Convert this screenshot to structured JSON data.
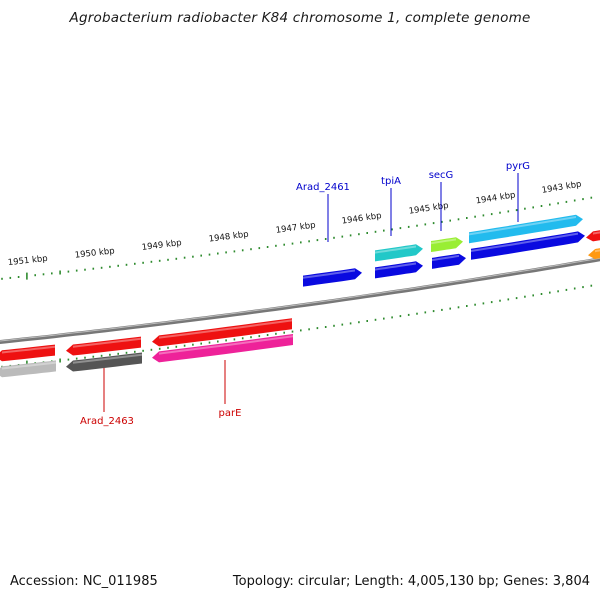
{
  "title": "Agrobacterium radiobacter K84 chromosome 1, complete genome",
  "footer": {
    "accession": "Accession: NC_011985",
    "topology": "Topology: circular; Length: 4,005,130 bp; Genes: 3,804"
  },
  "kbp_ticks": [
    "1951 kbp",
    "1950 kbp",
    "1949 kbp",
    "1948 kbp",
    "1947 kbp",
    "1946 kbp",
    "1945 kbp",
    "1944 kbp",
    "1943 kbp"
  ],
  "gene_labels": [
    {
      "text": "Arad_2461",
      "color": "#0000cc"
    },
    {
      "text": "tpiA",
      "color": "#0000cc"
    },
    {
      "text": "secG",
      "color": "#0000cc"
    },
    {
      "text": "pyrG",
      "color": "#0000cc"
    },
    {
      "text": "Arad_2463",
      "color": "#cc0000"
    },
    {
      "text": "parE",
      "color": "#cc0000"
    }
  ],
  "colors": {
    "backbone": "#777777",
    "tick_green": "#2e8b2e",
    "forward_blue": "#0a0ae0",
    "reverse_red": "#ee1111",
    "cyan": "#22c8c8",
    "lime": "#99ee33",
    "sky": "#22bbee",
    "magenta": "#ee2299",
    "dark_gray": "#555555",
    "light_gray": "#bbbbbb",
    "orange": "#ff9911"
  }
}
